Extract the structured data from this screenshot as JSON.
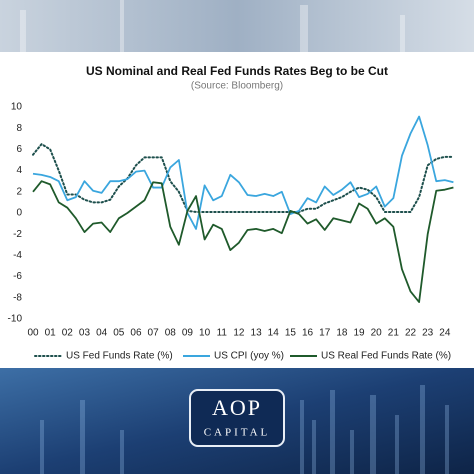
{
  "chart_data": {
    "type": "line",
    "title": "US Nominal and Real Fed Funds Rates Beg to be Cut",
    "subtitle": "(Source: Bloomberg)",
    "x": [
      0,
      0.5,
      1,
      1.5,
      2,
      2.5,
      3,
      3.5,
      4,
      4.5,
      5,
      5.5,
      6,
      6.5,
      7,
      7.5,
      8,
      8.5,
      9,
      9.5,
      10,
      10.5,
      11,
      11.5,
      12,
      12.5,
      13,
      13.5,
      14,
      14.5,
      15,
      15.5,
      16,
      16.5,
      17,
      17.5,
      18,
      18.5,
      19,
      19.5,
      20,
      20.5,
      21,
      21.5,
      22,
      22.5,
      23,
      23.5,
      24,
      24.5
    ],
    "xlim": [
      0,
      25
    ],
    "xticks": [
      {
        "value": 0,
        "label": "00"
      },
      {
        "value": 1,
        "label": "01"
      },
      {
        "value": 2,
        "label": "02"
      },
      {
        "value": 3,
        "label": "03"
      },
      {
        "value": 4,
        "label": "04"
      },
      {
        "value": 5,
        "label": "05"
      },
      {
        "value": 6,
        "label": "06"
      },
      {
        "value": 7,
        "label": "07"
      },
      {
        "value": 8,
        "label": "08"
      },
      {
        "value": 9,
        "label": "09"
      },
      10,
      11,
      12,
      13,
      14,
      15,
      16,
      17,
      18,
      19,
      20,
      21,
      22,
      23,
      24
    ],
    "ylim": [
      -10,
      10
    ],
    "yticks": [
      -10,
      -8,
      -6,
      -4,
      -2,
      0,
      2,
      4,
      6,
      8,
      10
    ],
    "grid": false,
    "legend": "bottom",
    "series": [
      {
        "name": "US Fed Funds Rate (%)",
        "color": "#1d4f4c",
        "style": "dotted",
        "values": [
          5.5,
          6.5,
          6,
          4,
          1.75,
          1.75,
          1.25,
          1,
          1,
          1.25,
          2.5,
          3.25,
          4.5,
          5.25,
          5.25,
          5.25,
          3,
          2,
          0.2,
          0.1,
          0.1,
          0.1,
          0.1,
          0.1,
          0.1,
          0.1,
          0.1,
          0.1,
          0.1,
          0.1,
          0.1,
          0.1,
          0.4,
          0.4,
          0.9,
          1.2,
          1.5,
          2,
          2.4,
          2.2,
          1.5,
          0.1,
          0.1,
          0.1,
          0.1,
          1.5,
          4.5,
          5.1,
          5.3,
          5.3
        ]
      },
      {
        "name": "US CPI (yoy %)",
        "color": "#3aa6de",
        "style": "solid",
        "values": [
          3.7,
          3.6,
          3.4,
          3,
          1.2,
          1.5,
          3,
          2.1,
          1.9,
          3,
          3,
          3.2,
          3.9,
          4,
          2.4,
          2.4,
          4.3,
          5,
          0,
          -1.5,
          2.6,
          1.2,
          1.6,
          3.6,
          2.9,
          1.7,
          1.6,
          1.8,
          1.6,
          2,
          -0.1,
          0.2,
          1.4,
          1,
          2.5,
          1.7,
          2.2,
          2.9,
          1.5,
          1.8,
          2.5,
          0.6,
          1.4,
          5.4,
          7.5,
          9.1,
          6.4,
          3,
          3.1,
          2.9
        ]
      },
      {
        "name": "US Real Fed Funds Rate (%)",
        "color": "#1f5a2b",
        "style": "solid",
        "values": [
          2,
          3,
          2.7,
          1,
          0.5,
          -0.5,
          -1.8,
          -1,
          -0.9,
          -1.8,
          -0.5,
          0,
          0.6,
          1.2,
          2.9,
          2.8,
          -1.3,
          -3,
          0.2,
          1.6,
          -2.5,
          -1.1,
          -1.5,
          -3.5,
          -2.8,
          -1.6,
          -1.5,
          -1.7,
          -1.5,
          -1.9,
          0.2,
          -0.1,
          -1,
          -0.6,
          -1.6,
          -0.5,
          -0.7,
          -0.9,
          0.9,
          0.4,
          -1,
          -0.5,
          -1.3,
          -5.3,
          -7.4,
          -8.4,
          -2,
          2.1,
          2.2,
          2.4
        ]
      }
    ]
  },
  "logo": {
    "mark": "AOP",
    "name": "CAPITAL"
  }
}
